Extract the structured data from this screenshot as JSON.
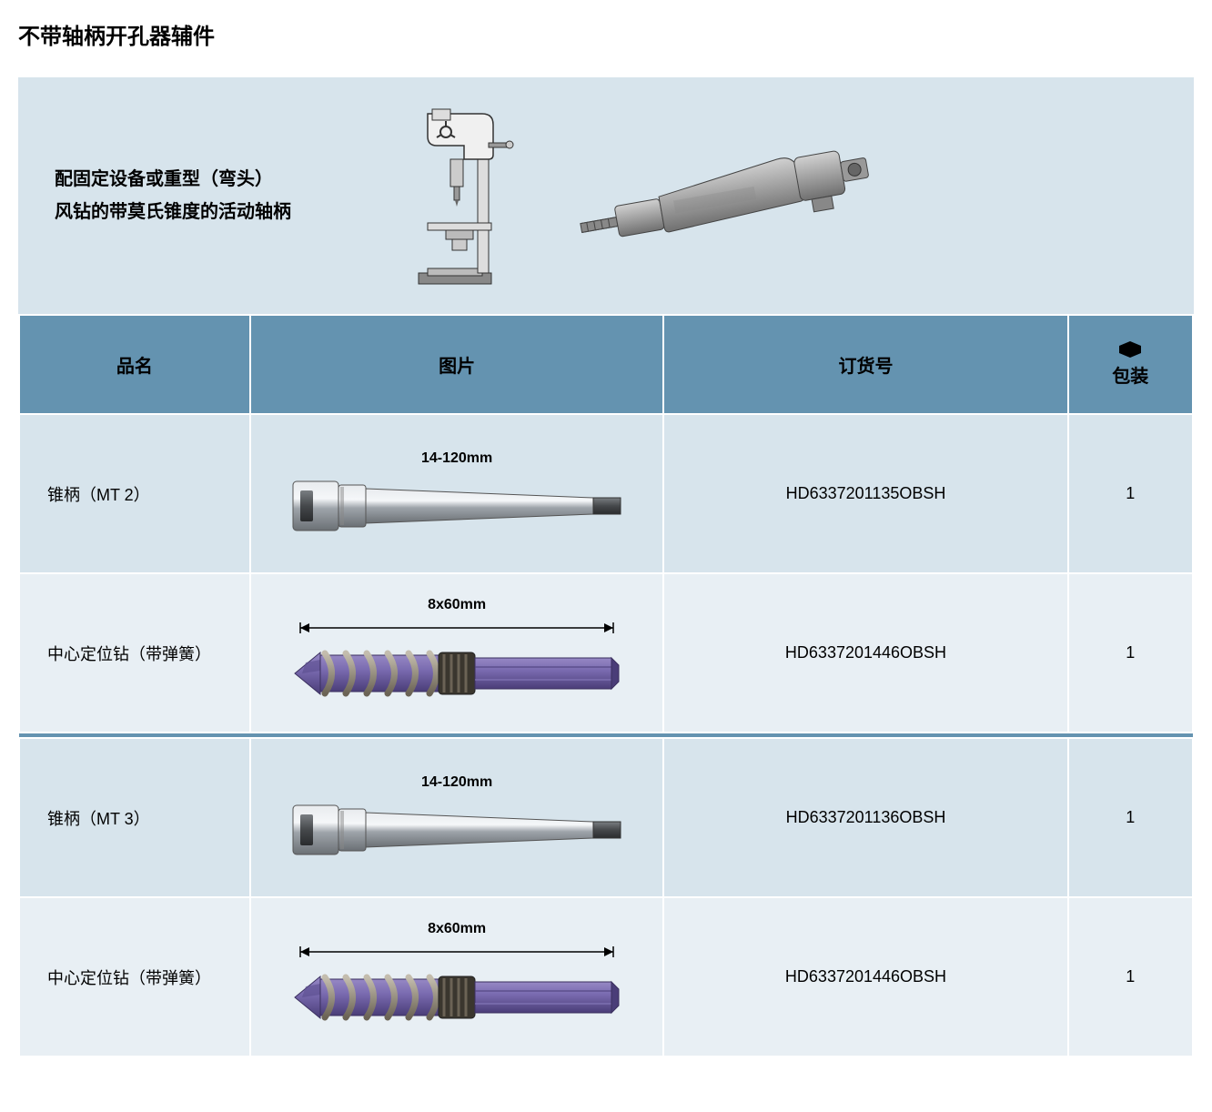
{
  "title": "不带轴柄开孔器辅件",
  "hero": {
    "line1": "配固定设备或重型（弯头）",
    "line2": "风钻的带莫氏锥度的活动轴柄"
  },
  "columns": {
    "name": "品名",
    "image": "图片",
    "order": "订货号",
    "pack": "包装"
  },
  "rows": [
    {
      "name": "锥柄（MT 2）",
      "dim": "14-120mm",
      "type": "taper",
      "order": "HD6337201135OBSH",
      "pack": "1",
      "alt": false
    },
    {
      "name": "中心定位钻（带弹簧）",
      "dim": "8x60mm",
      "type": "drill",
      "order": "HD6337201446OBSH",
      "pack": "1",
      "alt": true
    },
    {
      "name": "锥柄（MT 3）",
      "dim": "14-120mm",
      "type": "taper",
      "order": "HD6337201136OBSH",
      "pack": "1",
      "alt": false
    },
    {
      "name": "中心定位钻（带弹簧）",
      "dim": "8x60mm",
      "type": "drill",
      "order": "HD6337201446OBSH",
      "pack": "1",
      "alt": true
    }
  ],
  "colors": {
    "header_bg": "#6493b0",
    "cell_bg": "#d7e4ec",
    "cell_alt_bg": "#e8eff4",
    "taper_metal": "#b0b5ba",
    "taper_dark": "#5a5e62",
    "drill_body": "#6b5a9e",
    "drill_spring": "#8a8378"
  }
}
